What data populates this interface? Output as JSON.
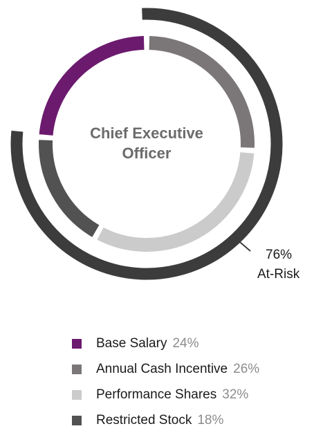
{
  "chart_data": {
    "type": "pie",
    "center_label_lines": [
      "Chief Executive",
      "Officer"
    ],
    "segments": [
      {
        "name": "Base Salary",
        "pct_label": "24%",
        "value": 24,
        "color": "#6b1a6e"
      },
      {
        "name": "Annual Cash Incentive",
        "pct_label": "26%",
        "value": 26,
        "color": "#7b7677"
      },
      {
        "name": "Performance Shares",
        "pct_label": "32%",
        "value": 32,
        "color": "#cbcbcb"
      },
      {
        "name": "Restricted Stock",
        "pct_label": "18%",
        "value": 18,
        "color": "#525252"
      }
    ],
    "at_risk": {
      "value_label": "76%",
      "label": "At-Risk",
      "value": 76,
      "color": "#3c3c3c"
    },
    "legend_position": "bottom"
  }
}
